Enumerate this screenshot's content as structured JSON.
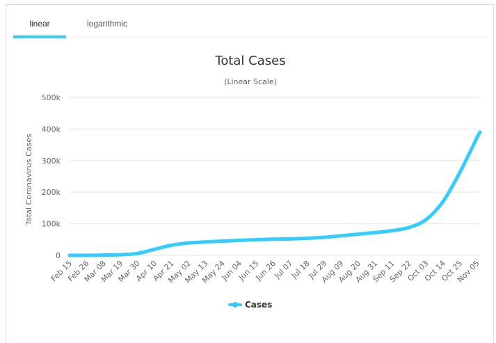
{
  "tabs": [
    {
      "label": "linear",
      "active": true
    },
    {
      "label": "logarithmic",
      "active": false
    }
  ],
  "colors": {
    "series": "#33ccff",
    "grid": "#e6e6e6",
    "axis_text": "#666666"
  },
  "chart_data": {
    "type": "line",
    "title": "Total Cases",
    "subtitle": "(Linear Scale)",
    "xlabel": "",
    "ylabel": "Total Coronavirus Cases",
    "ylim": [
      0,
      500000
    ],
    "yticks": [
      0,
      100000,
      200000,
      300000,
      400000,
      500000
    ],
    "ytick_labels": [
      "0",
      "100k",
      "200k",
      "300k",
      "400k",
      "500k"
    ],
    "x_start": "Feb 15",
    "x_end": "Nov 07",
    "xtick_labels": [
      "Feb 15",
      "Feb 26",
      "Mar 08",
      "Mar 19",
      "Mar 30",
      "Apr 10",
      "Apr 21",
      "May 02",
      "May 13",
      "May 24",
      "Jun 04",
      "Jun 15",
      "Jun 26",
      "Jul 07",
      "Jul 18",
      "Jul 29",
      "Aug 09",
      "Aug 20",
      "Aug 31",
      "Sep 11",
      "Sep 22",
      "Oct 03",
      "Oct 14",
      "Oct 25",
      "Nov 05"
    ],
    "grid": true,
    "legend_position": "bottom-center",
    "series": [
      {
        "name": "Cases",
        "x": [
          "Feb 15",
          "Feb 26",
          "Mar 08",
          "Mar 19",
          "Mar 30",
          "Apr 10",
          "Apr 21",
          "May 02",
          "May 13",
          "May 24",
          "Jun 04",
          "Jun 15",
          "Jun 26",
          "Jul 07",
          "Jul 18",
          "Jul 29",
          "Aug 09",
          "Aug 20",
          "Aug 31",
          "Sep 11",
          "Sep 22",
          "Oct 03",
          "Oct 14",
          "Oct 25",
          "Nov 05",
          "Nov 07"
        ],
        "values": [
          0,
          100,
          800,
          2000,
          6000,
          19000,
          32000,
          39000,
          42500,
          45000,
          47500,
          49500,
          51000,
          52000,
          54000,
          57000,
          62000,
          67000,
          72000,
          78000,
          88000,
          113000,
          170000,
          263000,
          372000,
          390000
        ]
      }
    ]
  }
}
